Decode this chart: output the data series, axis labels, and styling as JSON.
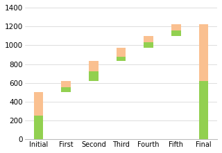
{
  "categories": [
    "Initial",
    "First",
    "Second",
    "Third",
    "Fourth",
    "Fifth",
    "Final"
  ],
  "base": [
    0,
    500,
    620,
    830,
    970,
    1100,
    0
  ],
  "green_height": [
    250,
    55,
    100,
    50,
    60,
    60,
    620
  ],
  "orange_height": [
    250,
    65,
    110,
    90,
    70,
    60,
    600
  ],
  "green_color": "#92d050",
  "orange_color": "#fac090",
  "background_color": "#ffffff",
  "ylim": [
    0,
    1400
  ],
  "yticks": [
    0,
    200,
    400,
    600,
    800,
    1000,
    1200,
    1400
  ],
  "figsize": [
    3.2,
    2.21
  ],
  "dpi": 100,
  "bar_width": 0.35
}
